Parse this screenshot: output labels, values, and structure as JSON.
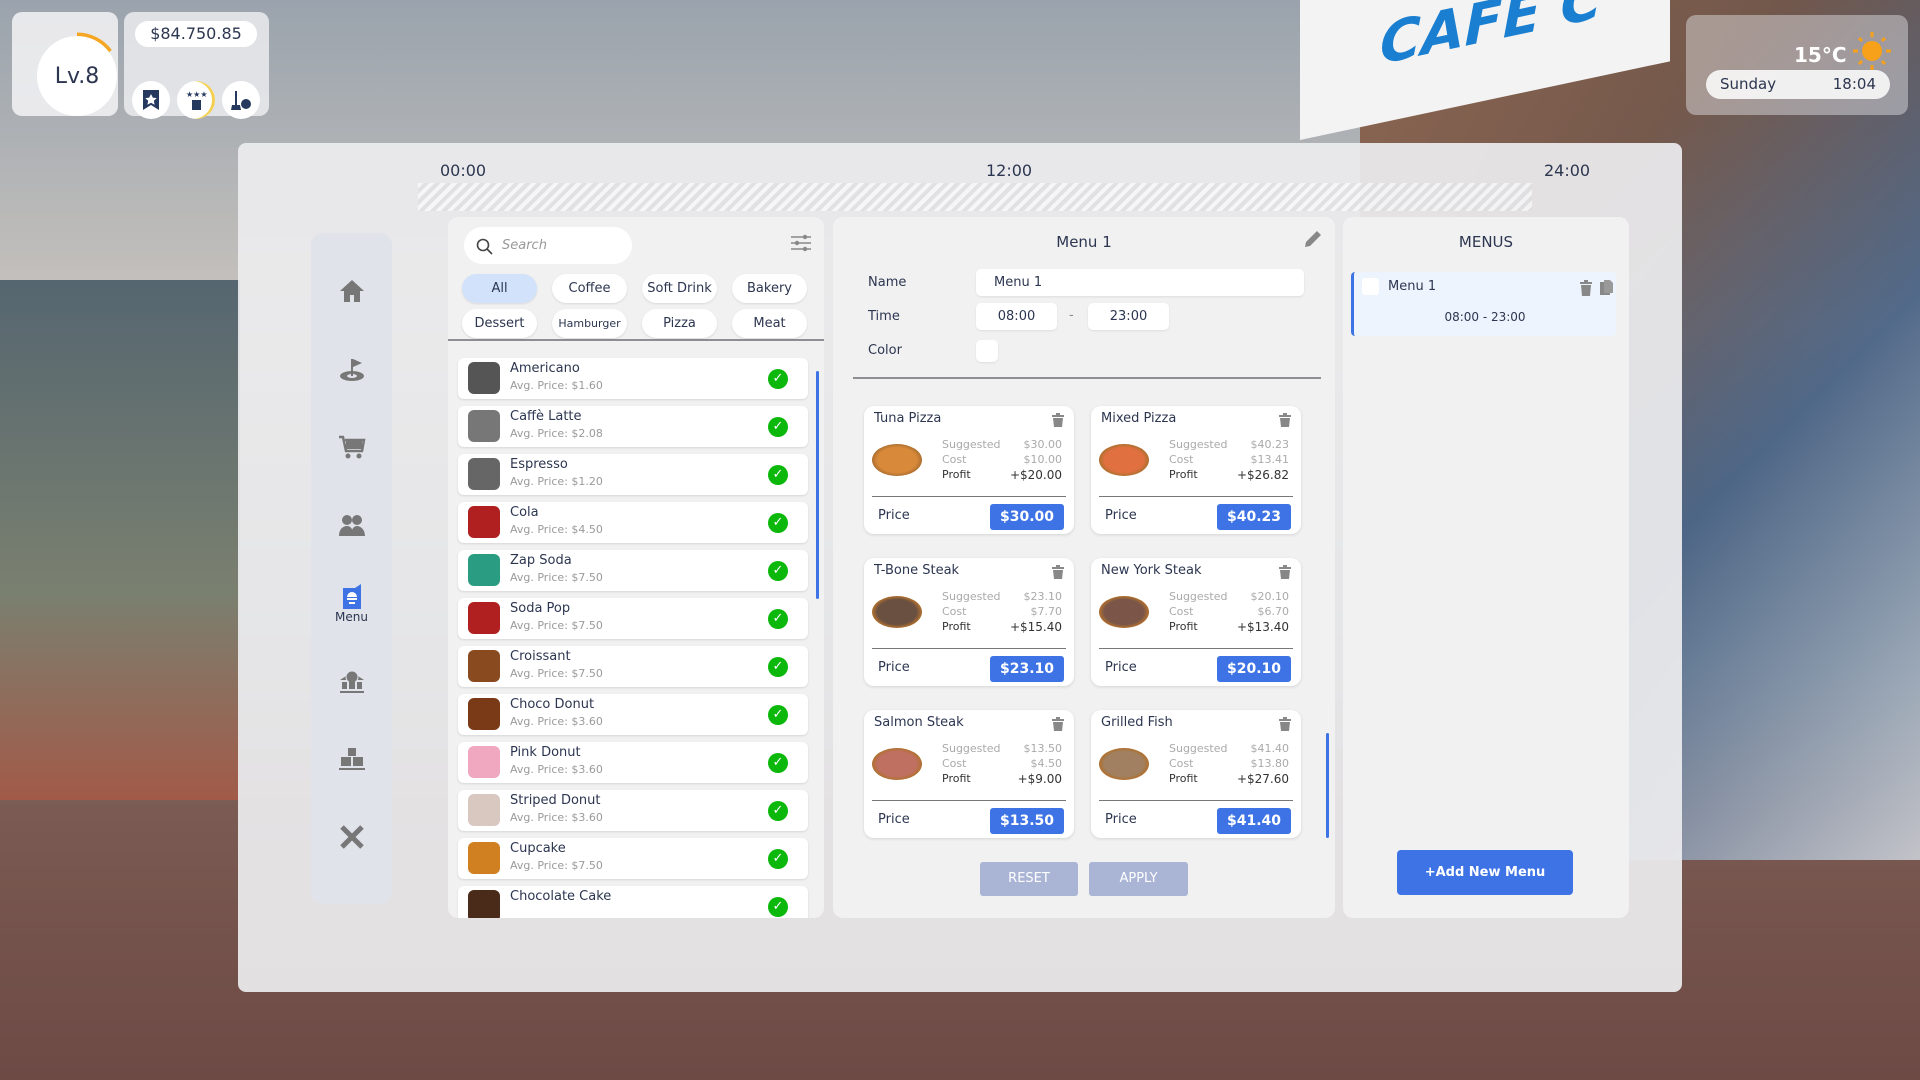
{
  "hud": {
    "level": "Lv.8",
    "level_progress": 0.15,
    "money": "$84.750.85",
    "temperature": "15°C",
    "weather_icon": "sun-icon",
    "day": "Sunday",
    "time": "18:04"
  },
  "scene": {
    "sign": "CAFE C"
  },
  "timeline": {
    "start": "00:00",
    "mid": "12:00",
    "end": "24:00"
  },
  "sidebar": {
    "active": "Menu",
    "items": [
      {
        "icon": "home-icon"
      },
      {
        "icon": "flag-target-icon"
      },
      {
        "icon": "cart-icon"
      },
      {
        "icon": "staff-icon"
      },
      {
        "icon": "menu-book-icon",
        "label": "Menu"
      },
      {
        "icon": "bank-icon"
      },
      {
        "icon": "boxes-icon"
      },
      {
        "icon": "tools-icon"
      }
    ]
  },
  "items_panel": {
    "search_placeholder": "Search",
    "categories": [
      "All",
      "Coffee",
      "Soft Drink",
      "Bakery",
      "Dessert",
      "Hamburger",
      "Pizza",
      "Meat"
    ],
    "active_category": "All",
    "items": [
      {
        "name": "Americano",
        "price": "Avg. Price: $1.60",
        "color": "#555"
      },
      {
        "name": "Caffè Latte",
        "price": "Avg. Price: $2.08",
        "color": "#777"
      },
      {
        "name": "Espresso",
        "price": "Avg. Price: $1.20",
        "color": "#666"
      },
      {
        "name": "Cola",
        "price": "Avg. Price: $4.50",
        "color": "#b02020"
      },
      {
        "name": "Zap Soda",
        "price": "Avg. Price: $7.50",
        "color": "#2a9c82"
      },
      {
        "name": "Soda Pop",
        "price": "Avg. Price: $7.50",
        "color": "#b02020"
      },
      {
        "name": "Croissant",
        "price": "Avg. Price: $7.50",
        "color": "#8a4a20"
      },
      {
        "name": "Choco Donut",
        "price": "Avg. Price: $3.60",
        "color": "#7a3a18"
      },
      {
        "name": "Pink Donut",
        "price": "Avg. Price: $3.60",
        "color": "#f0a8c0"
      },
      {
        "name": "Striped Donut",
        "price": "Avg. Price: $3.60",
        "color": "#d8c8c0"
      },
      {
        "name": "Cupcake",
        "price": "Avg. Price: $7.50",
        "color": "#d08020"
      },
      {
        "name": "Chocolate Cake",
        "price": "",
        "color": "#4a2a18"
      }
    ]
  },
  "editor": {
    "title": "Menu 1",
    "name_label": "Name",
    "name_value": "Menu 1",
    "time_label": "Time",
    "time_start": "08:00",
    "time_sep": "-",
    "time_end": "23:00",
    "color_label": "Color",
    "suggested_label": "Suggested",
    "cost_label": "Cost",
    "profit_label": "Profit",
    "price_label": "Price",
    "cards": [
      {
        "name": "Tuna Pizza",
        "suggested": "$30.00",
        "cost": "$10.00",
        "profit": "+$20.00",
        "price": "$30.00",
        "color": "#d88a3a"
      },
      {
        "name": "Mixed Pizza",
        "suggested": "$40.23",
        "cost": "$13.41",
        "profit": "+$26.82",
        "price": "$40.23",
        "color": "#e07040"
      },
      {
        "name": "T-Bone Steak",
        "suggested": "$23.10",
        "cost": "$7.70",
        "profit": "+$15.40",
        "price": "$23.10",
        "color": "#6a5040"
      },
      {
        "name": "New York Steak",
        "suggested": "$20.10",
        "cost": "$6.70",
        "profit": "+$13.40",
        "price": "$20.10",
        "color": "#7a5548"
      },
      {
        "name": "Salmon Steak",
        "suggested": "$13.50",
        "cost": "$4.50",
        "profit": "+$9.00",
        "price": "$13.50",
        "color": "#c07060"
      },
      {
        "name": "Grilled Fish",
        "suggested": "$41.40",
        "cost": "$13.80",
        "profit": "+$27.60",
        "price": "$41.40",
        "color": "#a08060"
      }
    ],
    "reset": "RESET",
    "apply": "APPLY"
  },
  "menus_panel": {
    "title": "MENUS",
    "menus": [
      {
        "name": "Menu 1",
        "time": "08:00 - 23:00"
      }
    ],
    "add": "+Add New Menu"
  },
  "colors": {
    "accent": "#3e73e6",
    "check": "#0cb80c",
    "progress": "#f5a623"
  }
}
